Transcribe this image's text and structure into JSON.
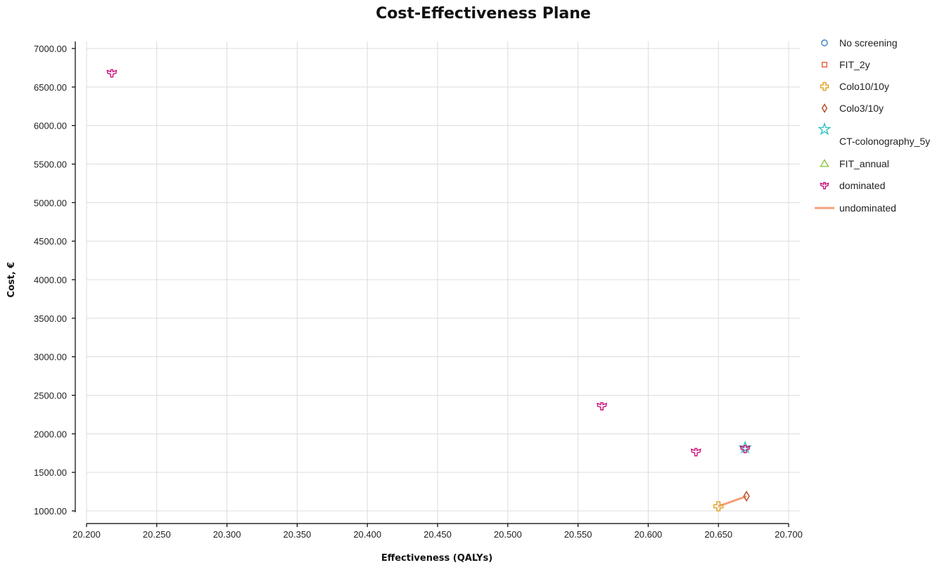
{
  "chart_data": {
    "type": "scatter",
    "title": "Cost-Effectiveness Plane",
    "xlabel": "Effectiveness (QALYs)",
    "ylabel": "Cost, €",
    "xlim": [
      20.2,
      20.7
    ],
    "ylim": [
      1000,
      7000
    ],
    "xticks": [
      "20.200",
      "20.250",
      "20.300",
      "20.350",
      "20.400",
      "20.450",
      "20.500",
      "20.550",
      "20.600",
      "20.650",
      "20.700"
    ],
    "yticks": [
      "1000.00",
      "1500.00",
      "2000.00",
      "2500.00",
      "3000.00",
      "3500.00",
      "4000.00",
      "4500.00",
      "5000.00",
      "5500.00",
      "6000.00",
      "6500.00",
      "7000.00"
    ],
    "grid": true,
    "legend_position": "right",
    "series": [
      {
        "name": "No screening",
        "marker": "circle",
        "color": "#3a7fc1",
        "points": []
      },
      {
        "name": "FIT_2y",
        "marker": "square",
        "color": "#e8603c",
        "points": []
      },
      {
        "name": "Colo10/10y",
        "marker": "cross",
        "color": "#e0a020",
        "points": [
          {
            "x": 20.65,
            "y": 1060
          }
        ]
      },
      {
        "name": "Colo3/10y",
        "marker": "diamond",
        "color": "#b04a22",
        "points": [
          {
            "x": 20.67,
            "y": 1190
          }
        ]
      },
      {
        "name": "CT-colonography_5y",
        "marker": "star",
        "color": "#2ec4c4",
        "points": [
          {
            "x": 20.669,
            "y": 1820
          }
        ]
      },
      {
        "name": "FIT_annual",
        "marker": "triangle",
        "color": "#8cc63f",
        "points": []
      },
      {
        "name": "dominated",
        "marker": "trefoil",
        "color": "#c8127a",
        "points": [
          {
            "x": 20.218,
            "y": 6680
          },
          {
            "x": 20.567,
            "y": 2360
          },
          {
            "x": 20.634,
            "y": 1765
          },
          {
            "x": 20.669,
            "y": 1805
          }
        ]
      },
      {
        "name": "undominated",
        "marker": "line",
        "color": "#f4a07a",
        "points": [
          {
            "x": 20.65,
            "y": 1060
          },
          {
            "x": 20.67,
            "y": 1190
          }
        ]
      }
    ]
  }
}
